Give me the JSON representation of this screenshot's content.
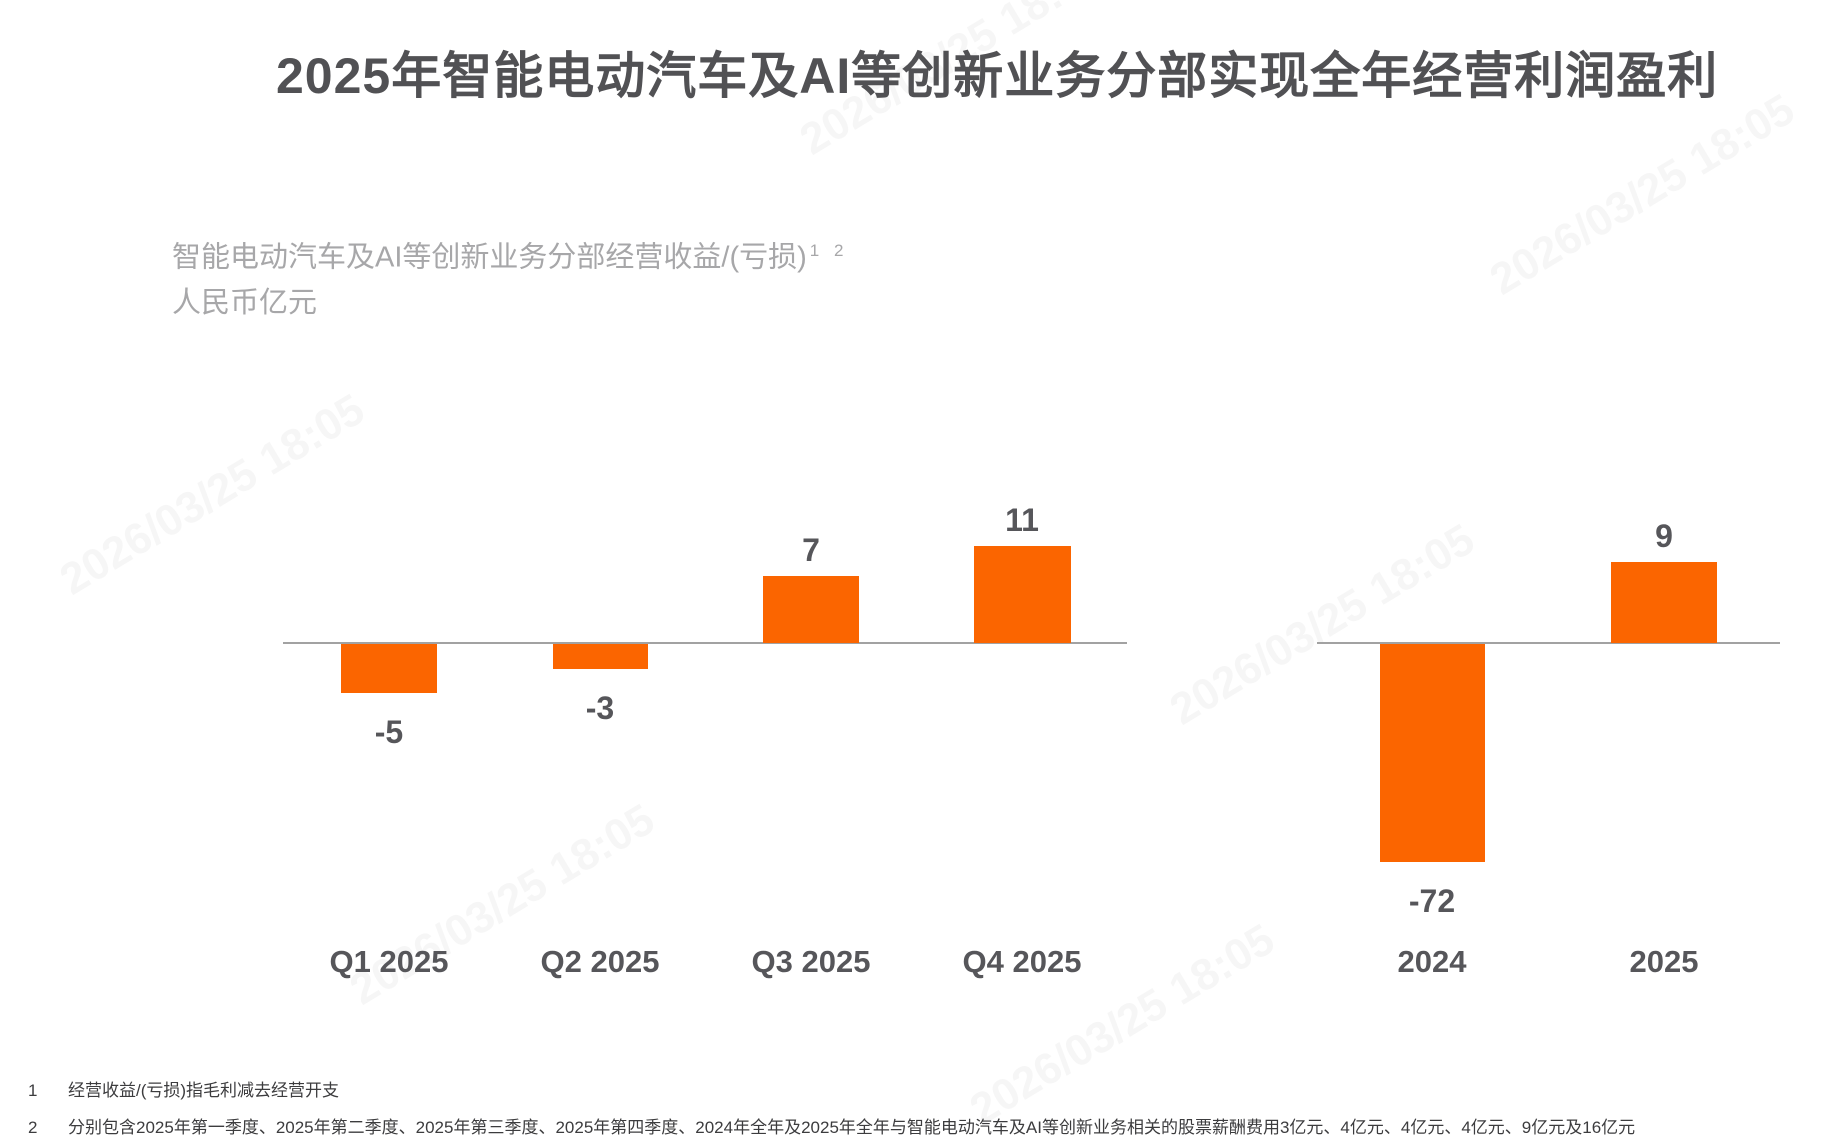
{
  "title": "2025年智能电动汽车及AI等创新业务分部实现全年经营利润盈利",
  "chart_header": {
    "line1": "智能电动汽车及AI等创新业务分部经营收益/(亏损)",
    "footnote_refs": "1 2",
    "line2": "人民币亿元"
  },
  "chart_data": {
    "type": "bar",
    "title": "智能电动汽车及AI等创新业务分部经营收益/(亏损)",
    "unit": "人民币亿元",
    "groups": [
      {
        "name": "quarterly",
        "categories": [
          "Q1 2025",
          "Q2 2025",
          "Q3 2025",
          "Q4 2025"
        ],
        "values": [
          -5,
          -3,
          7,
          11
        ]
      },
      {
        "name": "annual",
        "categories": [
          "2024",
          "2025"
        ],
        "values": [
          -72,
          9
        ]
      }
    ],
    "bar_color": "#FB6500",
    "baseline": 0,
    "grid": false,
    "legend": "none",
    "value_labels": true
  },
  "footnotes": [
    {
      "marker": "1",
      "text": "经营收益/(亏损)指毛利减去经营开支"
    },
    {
      "marker": "2",
      "text": "分别包含2025年第一季度、2025年第二季度、2025年第三季度、2025年第四季度、2024年全年及2025年全年与智能电动汽车及AI等创新业务相关的股票薪酬费用3亿元、4亿元、4亿元、4亿元、9亿元及16亿元"
    }
  ],
  "watermark": "2026/03/25 18:05",
  "colors": {
    "bar_orange": "#FB6500",
    "title_text": "#515154",
    "subtitle_text": "#A7A7A9",
    "label_text": "#56565A",
    "axis_line": "#A2A2A2",
    "footnote_text": "#3C3C3E"
  }
}
